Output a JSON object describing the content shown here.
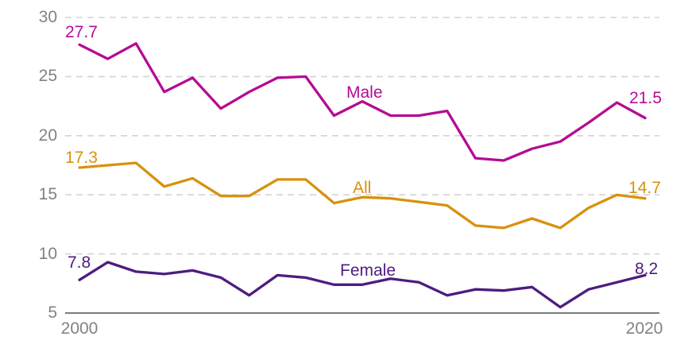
{
  "chart_data": {
    "type": "line",
    "x": [
      2000,
      2001,
      2002,
      2003,
      2004,
      2005,
      2006,
      2007,
      2008,
      2009,
      2010,
      2011,
      2012,
      2013,
      2014,
      2015,
      2016,
      2017,
      2018,
      2019,
      2020
    ],
    "series": [
      {
        "name": "Male",
        "color": "#b50c93",
        "values": [
          27.7,
          26.5,
          27.8,
          23.7,
          24.9,
          22.3,
          23.7,
          24.9,
          25.0,
          21.7,
          22.9,
          21.7,
          21.7,
          22.1,
          18.1,
          17.9,
          18.9,
          19.5,
          21.1,
          22.8,
          21.5
        ]
      },
      {
        "name": "All",
        "color": "#d8910e",
        "values": [
          17.3,
          17.5,
          17.7,
          15.7,
          16.4,
          14.9,
          14.9,
          16.3,
          16.3,
          14.3,
          14.8,
          14.7,
          14.4,
          14.1,
          12.4,
          12.2,
          13.0,
          12.2,
          13.9,
          15.0,
          14.7
        ]
      },
      {
        "name": "Female",
        "color": "#4c1d7f",
        "values": [
          7.8,
          9.3,
          8.5,
          8.3,
          8.6,
          8.0,
          6.5,
          8.2,
          8.0,
          7.4,
          7.4,
          7.9,
          7.6,
          6.5,
          7.0,
          6.9,
          7.2,
          5.5,
          7.0,
          7.6,
          8.2
        ]
      }
    ],
    "yticks": [
      30,
      25,
      20,
      15,
      10,
      5
    ],
    "xticks": [
      "2000",
      "2020"
    ],
    "ylim": [
      5,
      30
    ],
    "xlim": [
      2000,
      2020
    ],
    "grid": "horizontal dashed gridlines, solid baseline at 5",
    "legend": "inline labels next to lines",
    "colors": {
      "tick_text": "#7f8284",
      "gridline": "#d4d4d4",
      "axis_line": "#7a7d80"
    }
  }
}
